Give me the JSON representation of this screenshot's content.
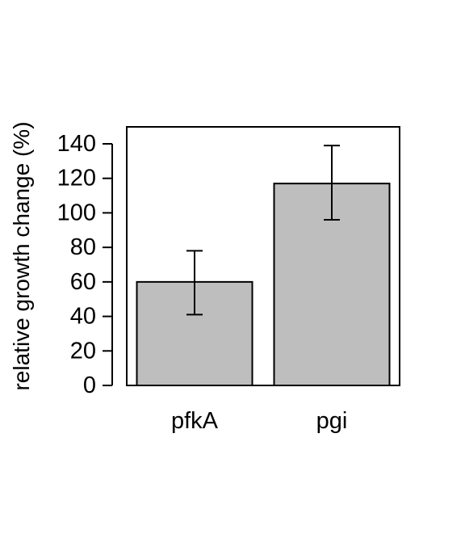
{
  "chart_data": {
    "type": "bar",
    "title": "",
    "xlabel": "",
    "ylabel": "relative growth change (%)",
    "categories": [
      "pfkA",
      "pgi"
    ],
    "values": [
      60,
      117
    ],
    "error_bars": [
      {
        "low": 41,
        "high": 78
      },
      {
        "low": 96,
        "high": 139
      }
    ],
    "ylim": [
      0,
      150
    ],
    "yticks": [
      0,
      20,
      40,
      60,
      80,
      100,
      120,
      140
    ],
    "ytick_labels": [
      "0",
      "20",
      "40",
      "60",
      "80",
      "100",
      "120",
      "140"
    ],
    "bar_color": "#bebebe",
    "grid": false,
    "legend": "none"
  }
}
